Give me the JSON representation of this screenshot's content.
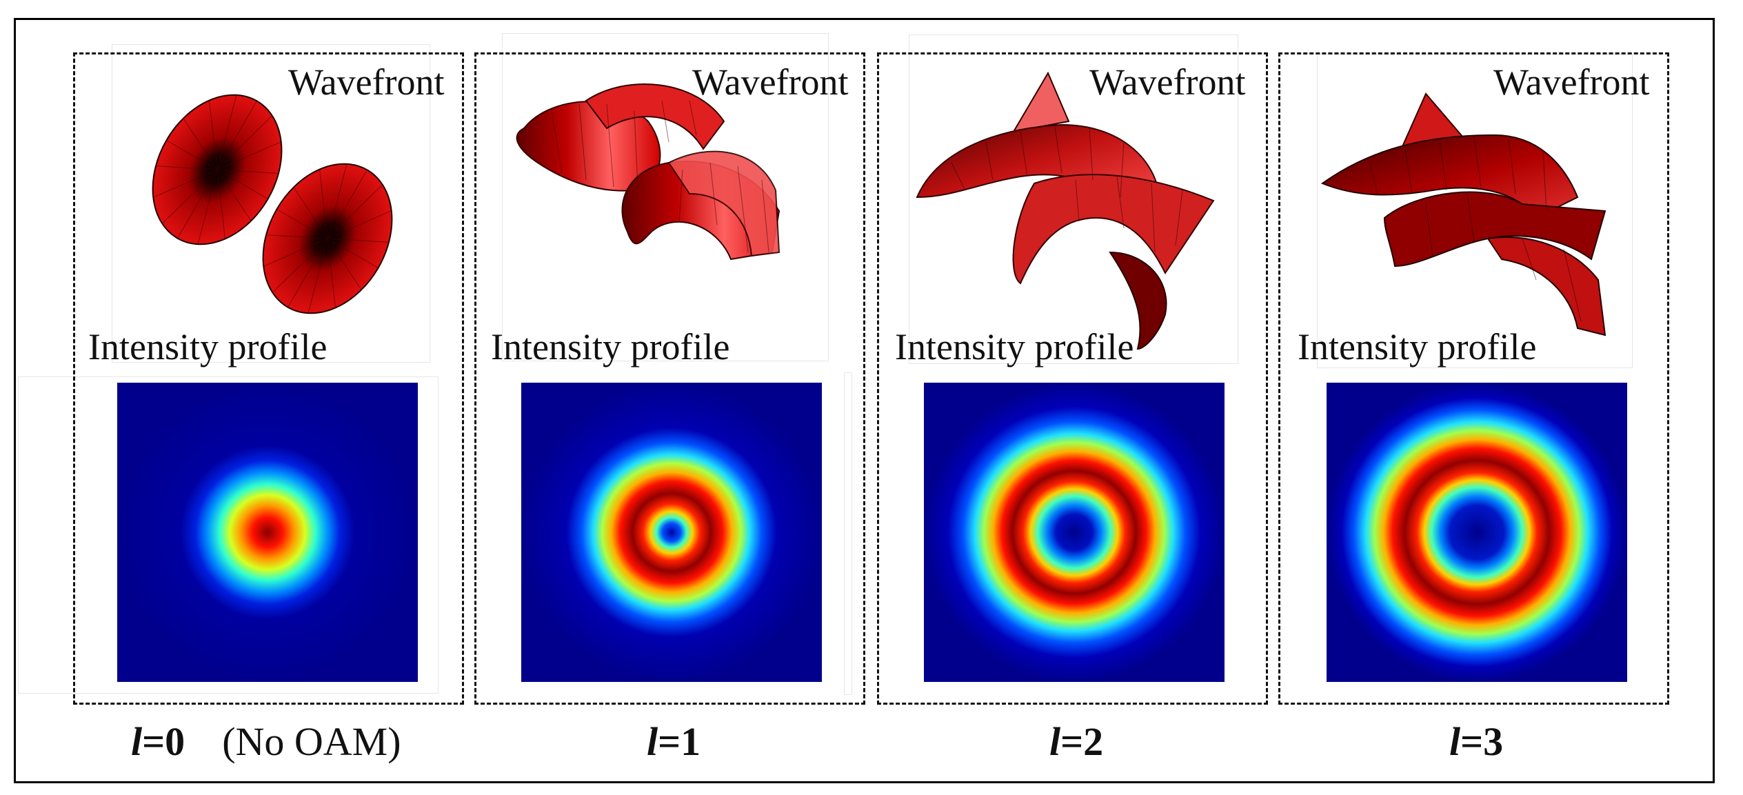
{
  "labels": {
    "wavefront": "Wavefront",
    "intensity": "Intensity profile",
    "ell": "l",
    "no_oam": "(No OAM)"
  },
  "panels": [
    {
      "l": "=0",
      "note": "(No OAM)"
    },
    {
      "l": "=1",
      "note": ""
    },
    {
      "l": "=2",
      "note": ""
    },
    {
      "l": "=3",
      "note": ""
    }
  ],
  "colors": {
    "wavefront_red": "#d80000",
    "wavefront_dark": "#300000",
    "jet_low": "#00008f",
    "jet_high": "#800000"
  },
  "icons": [
    "wavefront-surface-icon",
    "intensity-map-icon"
  ]
}
